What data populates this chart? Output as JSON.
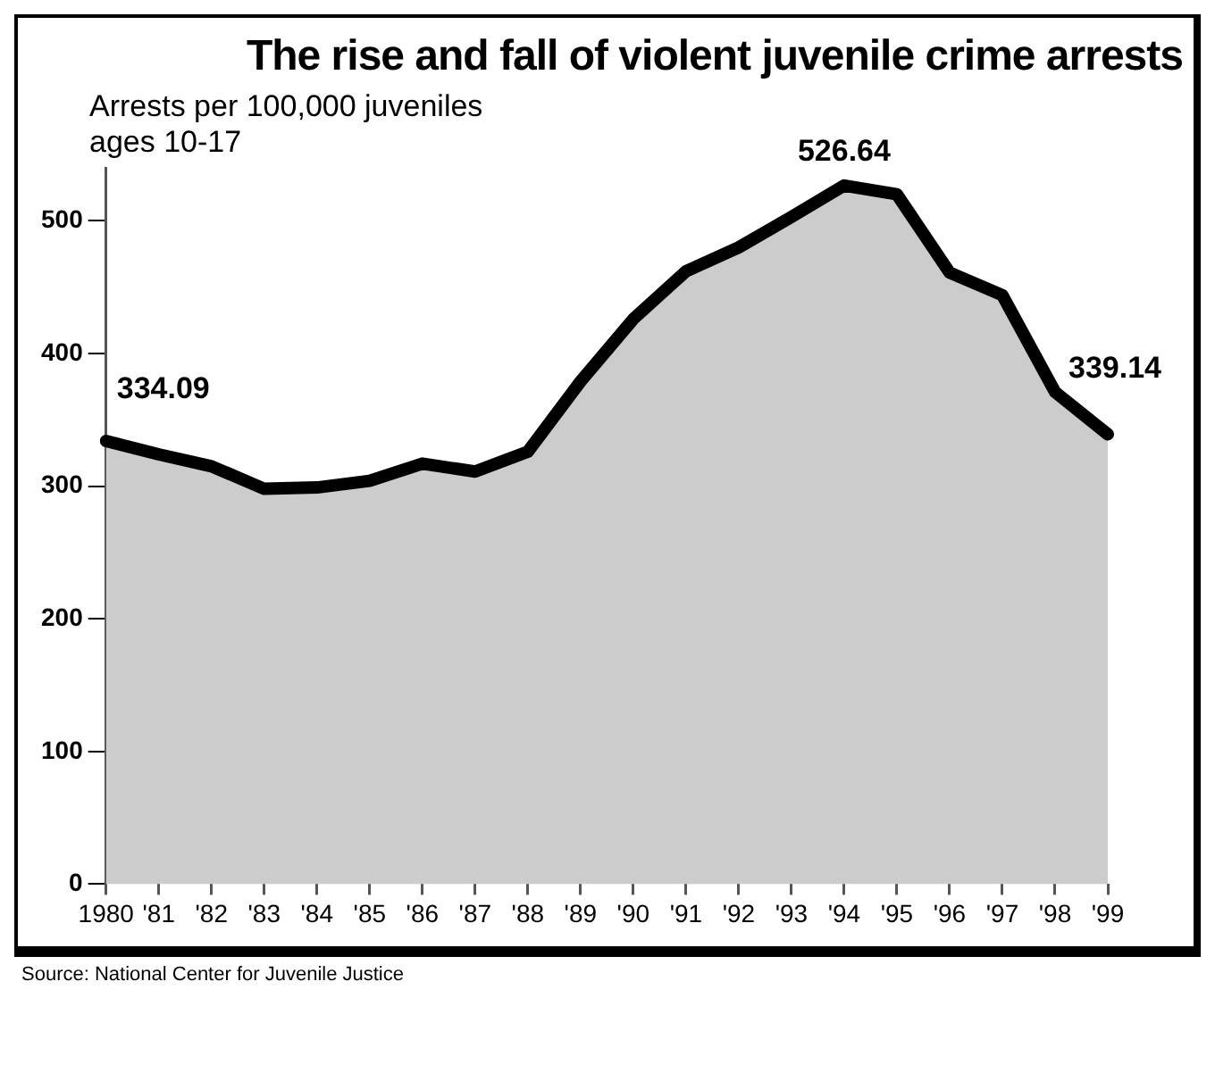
{
  "chart_data": {
    "type": "area",
    "title": "The rise and fall of violent juvenile crime arrests",
    "subtitle": "Arrests per 100,000 juveniles ages 10-17",
    "categories": [
      "1980",
      "'81",
      "'82",
      "'83",
      "'84",
      "'85",
      "'86",
      "'87",
      "'88",
      "'89",
      "'90",
      "'91",
      "'92",
      "'93",
      "'94",
      "'95",
      "'96",
      "'97",
      "'98",
      "'99"
    ],
    "series": [
      {
        "color": "#cccccc",
        "values": [
          334.09,
          324,
          315,
          298,
          299,
          304,
          317,
          311,
          326,
          379,
          426,
          462,
          480,
          503,
          526.64,
          520,
          461,
          444,
          371,
          339.14
        ],
        "value_labels": [
          "334.09",
          null,
          null,
          null,
          null,
          null,
          null,
          null,
          null,
          null,
          null,
          null,
          null,
          null,
          "526.64",
          null,
          null,
          null,
          null,
          "339.14"
        ]
      }
    ],
    "ylim": [
      0,
      540
    ],
    "yticks": [
      0,
      100,
      200,
      300,
      400,
      500
    ],
    "grid": false,
    "legend": false,
    "marker": "none",
    "line_style": "solid",
    "annotations": [
      "Source: National Center for Juvenile Justice"
    ]
  }
}
